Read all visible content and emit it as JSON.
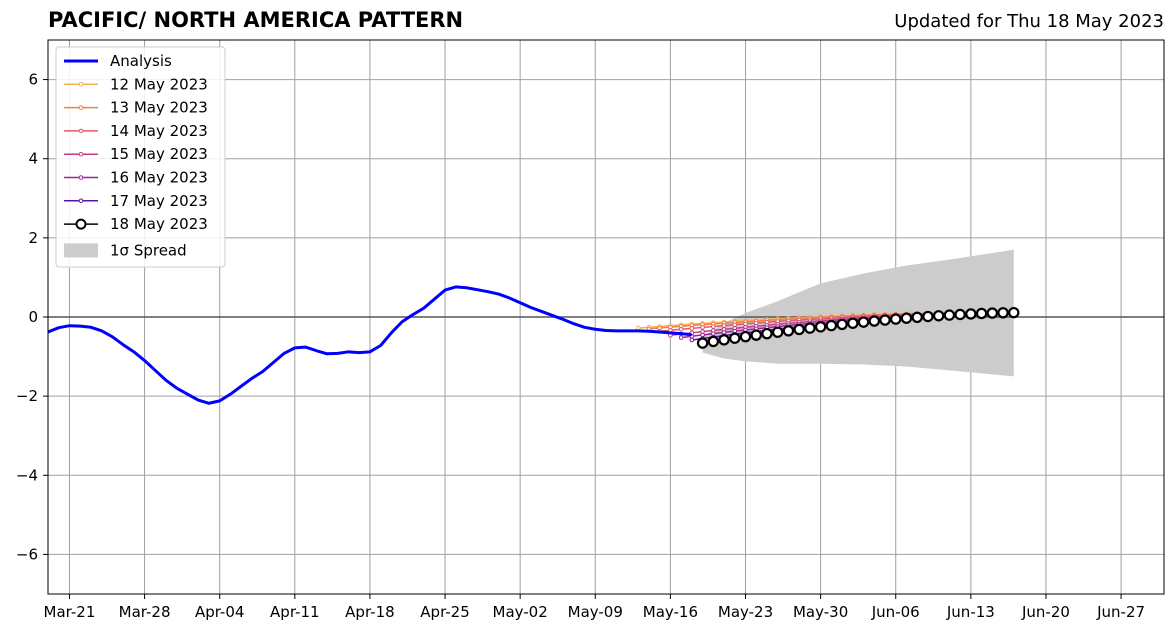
{
  "title": "PACIFIC/ NORTH AMERICA PATTERN",
  "subtitle": "Updated for Thu 18 May 2023",
  "chart_data": {
    "type": "line",
    "title": "PACIFIC/ NORTH AMERICA PATTERN",
    "subtitle": "Updated for Thu 18 May 2023",
    "xlabel": "",
    "ylabel": "",
    "xlim": [
      "2023-03-19",
      "2023-07-01"
    ],
    "ylim": [
      -7,
      7
    ],
    "grid": true,
    "legend_position": "top-left",
    "x_ticks": [
      "Mar-21",
      "Mar-28",
      "Apr-04",
      "Apr-11",
      "Apr-18",
      "Apr-25",
      "May-02",
      "May-09",
      "May-16",
      "May-23",
      "May-30",
      "Jun-06",
      "Jun-13",
      "Jun-20",
      "Jun-27"
    ],
    "x_tick_dates": [
      "2023-03-21",
      "2023-03-28",
      "2023-04-04",
      "2023-04-11",
      "2023-04-18",
      "2023-04-25",
      "2023-05-02",
      "2023-05-09",
      "2023-05-16",
      "2023-05-23",
      "2023-05-30",
      "2023-06-06",
      "2023-06-13",
      "2023-06-20",
      "2023-06-27"
    ],
    "y_ticks": [
      "6",
      "4",
      "2",
      "0",
      "−2",
      "−4",
      "−6"
    ],
    "y_tick_values": [
      6,
      4,
      2,
      0,
      -2,
      -4,
      -6
    ],
    "analysis": {
      "name": "Analysis",
      "color": "#0000ff",
      "x": [
        "2023-03-19",
        "2023-03-20",
        "2023-03-21",
        "2023-03-22",
        "2023-03-23",
        "2023-03-24",
        "2023-03-25",
        "2023-03-26",
        "2023-03-27",
        "2023-03-28",
        "2023-03-29",
        "2023-03-30",
        "2023-03-31",
        "2023-04-01",
        "2023-04-02",
        "2023-04-03",
        "2023-04-04",
        "2023-04-05",
        "2023-04-06",
        "2023-04-07",
        "2023-04-08",
        "2023-04-09",
        "2023-04-10",
        "2023-04-11",
        "2023-04-12",
        "2023-04-13",
        "2023-04-14",
        "2023-04-15",
        "2023-04-16",
        "2023-04-17",
        "2023-04-18",
        "2023-04-19",
        "2023-04-20",
        "2023-04-21",
        "2023-04-22",
        "2023-04-23",
        "2023-04-24",
        "2023-04-25",
        "2023-04-26",
        "2023-04-27",
        "2023-04-28",
        "2023-04-29",
        "2023-04-30",
        "2023-05-01",
        "2023-05-02",
        "2023-05-03",
        "2023-05-04",
        "2023-05-05",
        "2023-05-06",
        "2023-05-07",
        "2023-05-08",
        "2023-05-09",
        "2023-05-10",
        "2023-05-11",
        "2023-05-12",
        "2023-05-13",
        "2023-05-14",
        "2023-05-15",
        "2023-05-16",
        "2023-05-17",
        "2023-05-18"
      ],
      "values": [
        -0.38,
        -0.27,
        -0.22,
        -0.23,
        -0.26,
        -0.35,
        -0.5,
        -0.7,
        -0.88,
        -1.1,
        -1.35,
        -1.6,
        -1.8,
        -1.95,
        -2.1,
        -2.18,
        -2.12,
        -1.95,
        -1.75,
        -1.55,
        -1.38,
        -1.15,
        -0.92,
        -0.78,
        -0.76,
        -0.85,
        -0.93,
        -0.92,
        -0.88,
        -0.9,
        -0.88,
        -0.72,
        -0.4,
        -0.12,
        0.06,
        0.22,
        0.45,
        0.68,
        0.76,
        0.74,
        0.69,
        0.64,
        0.58,
        0.48,
        0.36,
        0.24,
        0.14,
        0.04,
        -0.06,
        -0.17,
        -0.26,
        -0.31,
        -0.34,
        -0.35,
        -0.35,
        -0.35,
        -0.36,
        -0.38,
        -0.4,
        -0.42,
        -0.45
      ]
    },
    "forecasts": [
      {
        "name": "12 May 2023",
        "color": "#f9b14e",
        "x_start": "2023-05-13",
        "y_start": -0.28,
        "y_end": 0.1
      },
      {
        "name": "13 May 2023",
        "color": "#ee8149",
        "x_start": "2023-05-14",
        "y_start": -0.3,
        "y_end": 0.1
      },
      {
        "name": "14 May 2023",
        "color": "#de5a6a",
        "x_start": "2023-05-15",
        "y_start": -0.36,
        "y_end": 0.1
      },
      {
        "name": "15 May 2023",
        "color": "#c13c86",
        "x_start": "2023-05-16",
        "y_start": -0.46,
        "y_end": 0.1
      },
      {
        "name": "16 May 2023",
        "color": "#9d2498",
        "x_start": "2023-05-17",
        "y_start": -0.52,
        "y_end": 0.1
      },
      {
        "name": "17 May 2023",
        "color": "#5c12a3",
        "x_start": "2023-05-18",
        "y_start": -0.58,
        "y_end": 0.1
      },
      {
        "name": "18 May 2023",
        "color": "#000000",
        "x_start": "2023-05-19",
        "y_start": -0.66,
        "y_end": 0.11
      }
    ],
    "spread": {
      "name": "1σ Spread",
      "color": "#cccccc",
      "x": [
        "2023-05-19",
        "2023-05-21",
        "2023-05-23",
        "2023-05-26",
        "2023-05-30",
        "2023-06-03",
        "2023-06-07",
        "2023-06-11",
        "2023-06-17"
      ],
      "upper": [
        -0.5,
        -0.15,
        0.1,
        0.4,
        0.85,
        1.1,
        1.3,
        1.45,
        1.7
      ],
      "lower": [
        -0.9,
        -1.05,
        -1.12,
        -1.18,
        -1.18,
        -1.2,
        -1.25,
        -1.35,
        -1.5
      ]
    },
    "legend": [
      "Analysis",
      "12 May 2023",
      "13 May 2023",
      "14 May 2023",
      "15 May 2023",
      "16 May 2023",
      "17 May 2023",
      "18 May 2023",
      "1σ Spread"
    ]
  }
}
